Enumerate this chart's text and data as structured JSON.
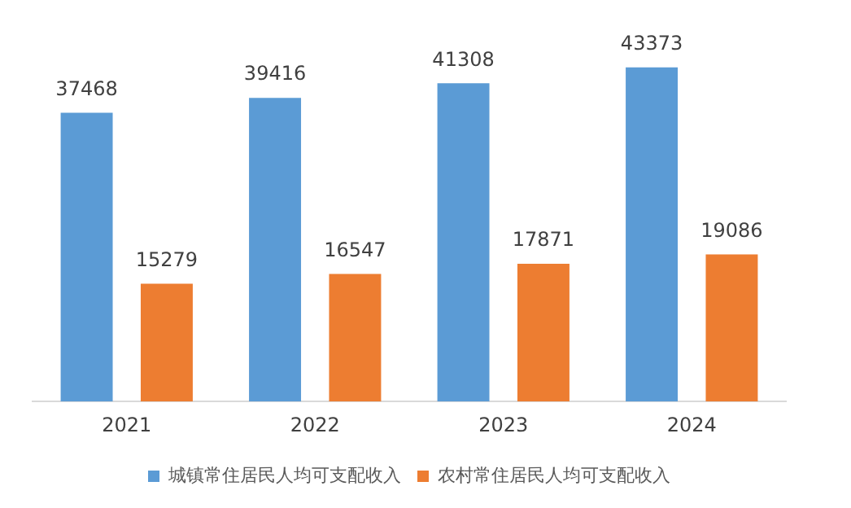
{
  "chart_data": {
    "type": "bar",
    "categories": [
      "2021",
      "2022",
      "2023",
      "2024"
    ],
    "series": [
      {
        "name": "城镇常住居民人均可支配收入",
        "color": "#5b9bd5",
        "values": [
          37468,
          39416,
          41308,
          43373
        ]
      },
      {
        "name": "农村常住居民人均可支配收入",
        "color": "#ed7d31",
        "values": [
          15279,
          16547,
          17871,
          19086
        ]
      }
    ],
    "data_labels": true,
    "legend": "bottom",
    "grid": false
  }
}
